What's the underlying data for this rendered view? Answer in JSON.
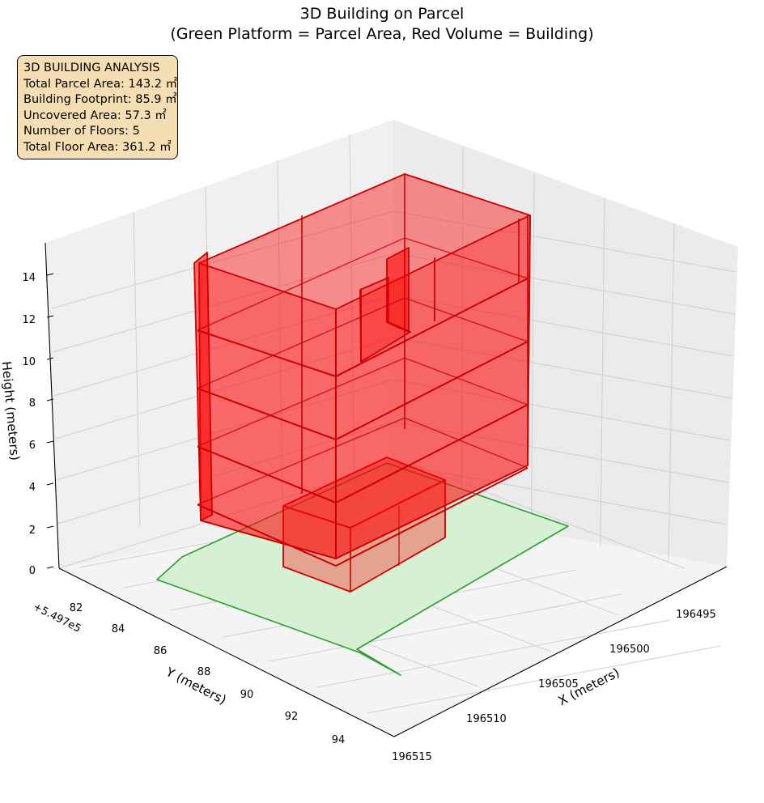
{
  "title": {
    "line1": "3D Building on Parcel",
    "line2": "(Green Platform = Parcel Area, Red Volume = Building)"
  },
  "info_box": {
    "heading": "3D BUILDING ANALYSIS",
    "lines": [
      "Total Parcel Area: 143.2 ㎡",
      "Building Footprint: 85.9 ㎡",
      "Uncovered Area: 57.3 ㎡",
      "Number of Floors: 5",
      "Total Floor Area: 361.2 ㎡"
    ]
  },
  "chart_data": {
    "type": "3d-surface",
    "title": "3D Building on Parcel\n(Green Platform = Parcel Area, Red Volume = Building)",
    "xlabel": "X (meters)",
    "ylabel": "Y (meters)",
    "zlabel": "Height (meters)",
    "x_ticks": [
      "196495",
      "196500",
      "196505",
      "196510",
      "196515"
    ],
    "y_ticks": [
      "82",
      "84",
      "86",
      "88",
      "90",
      "92",
      "94"
    ],
    "y_offset_label": "+5.497e5",
    "z_ticks": [
      "0",
      "2",
      "4",
      "6",
      "8",
      "10",
      "12",
      "14"
    ],
    "parcel_color": "#2ca02c",
    "parcel_fill": "#d6f0d4",
    "building_color": "#ff0000",
    "floor_edge_color": "#cc0000",
    "grid": true
  }
}
